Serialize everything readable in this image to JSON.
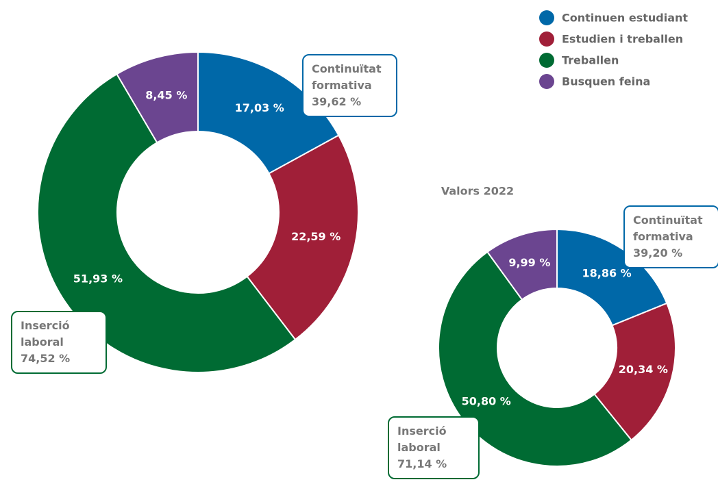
{
  "legend": {
    "labels": [
      "Continuen estudiant",
      "Estudien i treballen",
      "Treballen",
      "Busquen feina"
    ],
    "colors": [
      "#0068a8",
      "#a01f38",
      "#006b33",
      "#6b4590"
    ]
  },
  "chart_data": [
    {
      "type": "donut",
      "values": [
        17.03,
        22.59,
        51.93,
        8.45
      ],
      "value_labels": [
        "17,03 %",
        "22,59 %",
        "51,93 %",
        "8,45 %"
      ],
      "annotations": [
        {
          "label": "Continuïtat formativa",
          "value_label": "39,62 %",
          "color": "#0068a8"
        },
        {
          "label": "Inserció laboral",
          "value_label": "74,52 %",
          "color": "#006b33"
        }
      ]
    },
    {
      "type": "donut",
      "title": "Valors 2022",
      "values": [
        18.86,
        20.34,
        50.8,
        9.99
      ],
      "value_labels": [
        "18,86 %",
        "20,34 %",
        "50,80 %",
        "9,99 %"
      ],
      "annotations": [
        {
          "label": "Continuïtat formativa",
          "value_label": "39,20 %",
          "color": "#0068a8"
        },
        {
          "label": "Inserció laboral",
          "value_label": "71,14 %",
          "color": "#006b33"
        }
      ]
    }
  ]
}
